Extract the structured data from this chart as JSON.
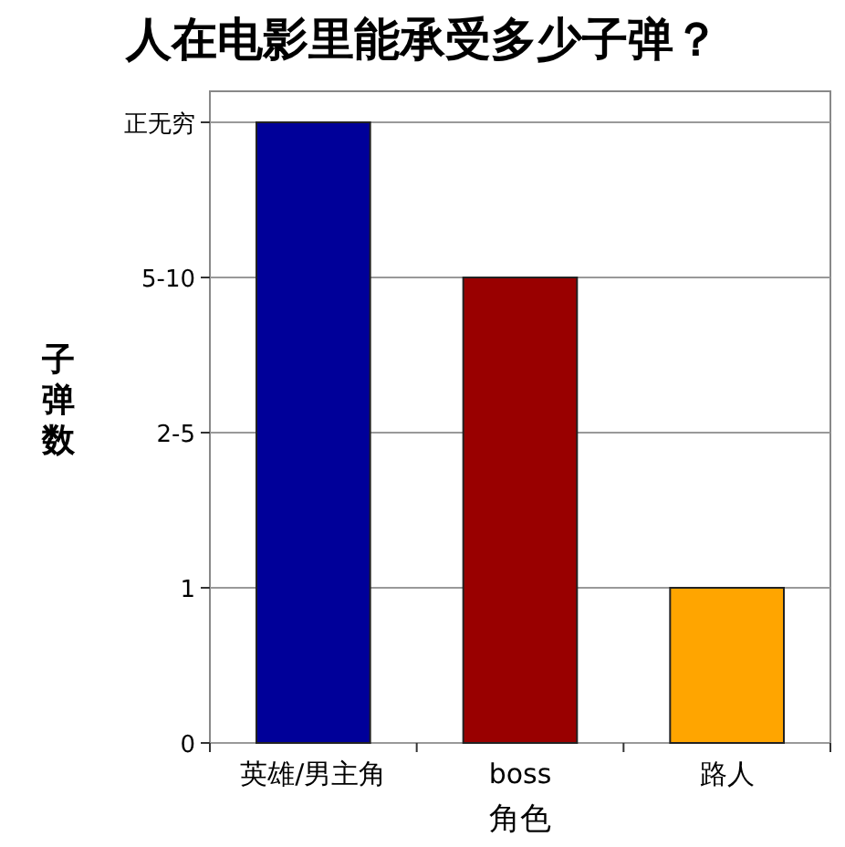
{
  "chart_data": {
    "type": "bar",
    "title": "人在电影里能承受多少子弹？",
    "xlabel": "角色",
    "ylabel": "子弹数",
    "categories": [
      "英雄/男主角",
      "boss",
      "路人"
    ],
    "values": [
      4,
      3,
      1
    ],
    "colors": [
      "#000099",
      "#990000",
      "#ffa500"
    ],
    "ylim": [
      0,
      4.2
    ],
    "yticks": [
      0,
      1,
      {
        "value": 2,
        "label": "2-5"
      },
      {
        "value": 3,
        "label": "5-10"
      },
      {
        "value": 4,
        "label": "正无穷"
      }
    ],
    "grid": "y"
  }
}
